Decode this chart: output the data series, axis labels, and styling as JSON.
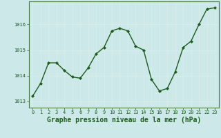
{
  "x": [
    0,
    1,
    2,
    3,
    4,
    5,
    6,
    7,
    8,
    9,
    10,
    11,
    12,
    13,
    14,
    15,
    16,
    17,
    18,
    19,
    20,
    21,
    22,
    23
  ],
  "y": [
    1013.2,
    1013.7,
    1014.5,
    1014.5,
    1014.2,
    1013.95,
    1013.9,
    1014.3,
    1014.85,
    1015.1,
    1015.75,
    1015.85,
    1015.75,
    1015.15,
    1015.0,
    1013.85,
    1013.4,
    1013.5,
    1014.15,
    1015.1,
    1015.35,
    1016.0,
    1016.6,
    1016.65
  ],
  "line_color": "#1a5c1a",
  "marker": "D",
  "marker_size": 2.2,
  "bg_color": "#cde8e8",
  "grid_color": "#b0d0d0",
  "axis_color": "#1a5c1a",
  "border_color": "#4a7a4a",
  "xlabel": "Graphe pression niveau de la mer (hPa)",
  "xlabel_fontsize": 7,
  "ylim": [
    1012.75,
    1016.9
  ],
  "yticks": [
    1013,
    1014,
    1015,
    1016
  ],
  "xticks": [
    0,
    1,
    2,
    3,
    4,
    5,
    6,
    7,
    8,
    9,
    10,
    11,
    12,
    13,
    14,
    15,
    16,
    17,
    18,
    19,
    20,
    21,
    22,
    23
  ],
  "tick_fontsize": 5.0,
  "line_width": 1.0
}
